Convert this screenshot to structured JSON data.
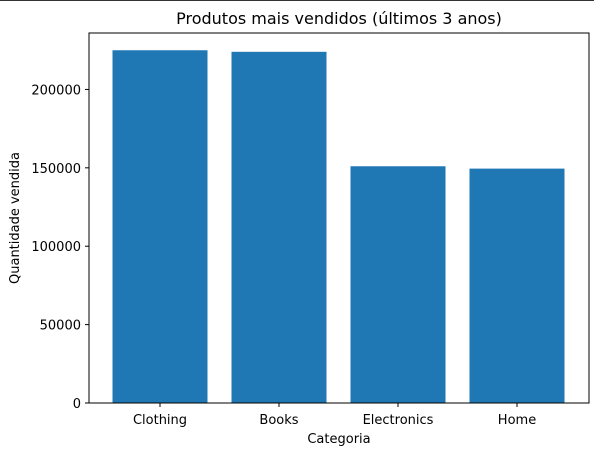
{
  "chart_data": {
    "type": "bar",
    "title": "Produtos mais vendidos (últimos 3 anos)",
    "xlabel": "Categoria",
    "ylabel": "Quantidade vendida",
    "categories": [
      "Clothing",
      "Books",
      "Electronics",
      "Home"
    ],
    "values": [
      225000,
      224000,
      151000,
      149500
    ],
    "ylim": [
      0,
      236000
    ],
    "yticks": [
      0,
      50000,
      100000,
      150000,
      200000
    ],
    "ytick_labels": [
      "0",
      "50000",
      "100000",
      "150000",
      "200000"
    ],
    "bar_color": "#1f77b4",
    "grid": false
  }
}
